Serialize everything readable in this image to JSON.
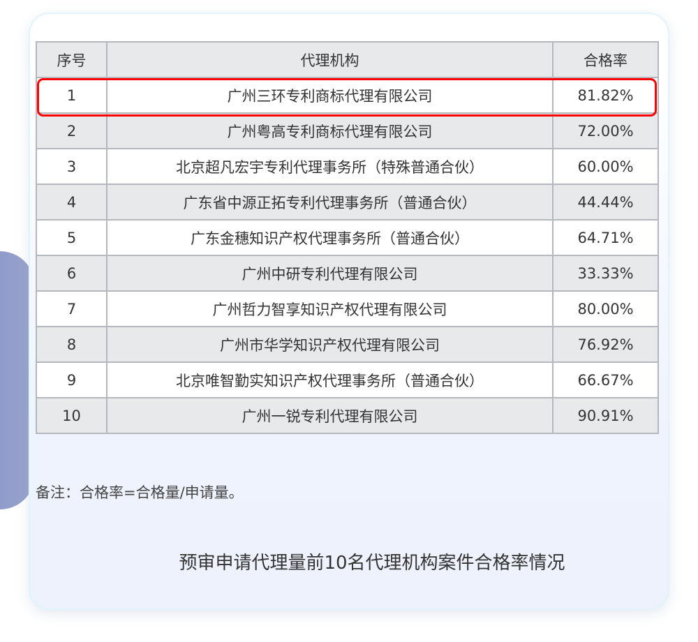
{
  "table": {
    "headers": [
      "序号",
      "代理机构",
      "合格率"
    ],
    "rows": [
      [
        "1",
        "广州三环专利商标代理有限公司",
        "81.82%"
      ],
      [
        "2",
        "广州粤高专利商标代理有限公司",
        "72.00%"
      ],
      [
        "3",
        "北京超凡宏宇专利代理事务所（特殊普通合伙）",
        "60.00%"
      ],
      [
        "4",
        "广东省中源正拓专利代理事务所（普通合伙）",
        "44.44%"
      ],
      [
        "5",
        "广东金穗知识产权代理事务所（普通合伙）",
        "64.71%"
      ],
      [
        "6",
        "广州中研专利代理有限公司",
        "33.33%"
      ],
      [
        "7",
        "广州哲力智享知识产权代理有限公司",
        "80.00%"
      ],
      [
        "8",
        "广州市华学知识产权代理有限公司",
        "76.92%"
      ],
      [
        "9",
        "北京唯智勤实知识产权代理事务所（普通合伙）",
        "66.67%"
      ],
      [
        "10",
        "广州一锐专利代理有限公司",
        "90.91%"
      ]
    ],
    "highlighted_row": 1,
    "highlight_color": "#ff0000"
  },
  "note": "备注：合格率=合格量/申请量。",
  "caption": "预审申请代理量前10名代理机构案件合格率情况"
}
